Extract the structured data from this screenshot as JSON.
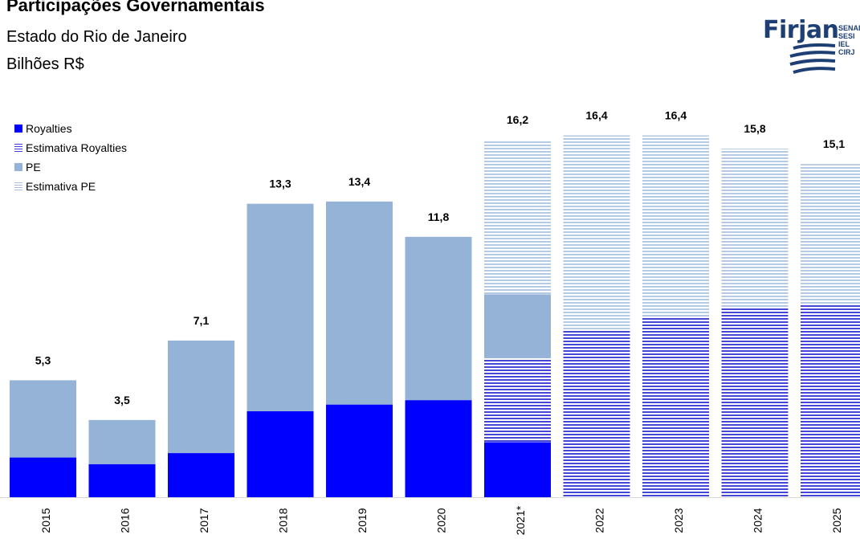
{
  "header": {
    "title": "Participações Governamentais",
    "subtitle": "Estado do Rio de Janeiro",
    "unit": "Bilhões R$"
  },
  "logo": {
    "name": "Firjan",
    "lines": [
      "SENAI",
      "SESI",
      "IEL",
      "CIRJ"
    ]
  },
  "legend": {
    "placement": "top-left",
    "items": [
      {
        "label": "Royalties",
        "color": "#0000ff",
        "pattern": "solid"
      },
      {
        "label": "Estimativa Royalties",
        "color": "#4b4bd8",
        "pattern": "striped"
      },
      {
        "label": "PE",
        "color": "#94b3d7",
        "pattern": "solid"
      },
      {
        "label": "Estimativa PE",
        "color": "#c5d5e8",
        "pattern": "striped"
      }
    ]
  },
  "chart_data": {
    "type": "bar",
    "stacked": true,
    "categories": [
      "2015",
      "2016",
      "2017",
      "2018",
      "2019",
      "2020",
      "2021*",
      "2022",
      "2023",
      "2024",
      "2025"
    ],
    "series": [
      {
        "name": "Royalties",
        "values": [
          1.8,
          1.5,
          2.0,
          3.9,
          4.2,
          4.4,
          2.5,
          0,
          0,
          0,
          0
        ]
      },
      {
        "name": "Estimativa Royalties",
        "values": [
          0,
          0,
          0,
          0,
          0,
          0,
          3.8,
          7.6,
          8.2,
          8.6,
          8.7
        ]
      },
      {
        "name": "PE",
        "values": [
          3.5,
          2.0,
          5.1,
          9.4,
          9.2,
          7.4,
          2.9,
          0,
          0,
          0,
          0
        ]
      },
      {
        "name": "Estimativa PE",
        "values": [
          0,
          0,
          0,
          0,
          0,
          0,
          7.0,
          8.8,
          8.2,
          7.2,
          6.4
        ]
      }
    ],
    "totals": [
      5.3,
      3.5,
      7.1,
      13.3,
      13.4,
      11.8,
      16.2,
      16.4,
      16.4,
      15.8,
      15.1
    ],
    "total_labels": [
      "5,3",
      "3,5",
      "7,1",
      "13,3",
      "13,4",
      "11,8",
      "16,2",
      "16,4",
      "16,4",
      "15,8",
      "15,1"
    ],
    "ylim": [
      0,
      16.6
    ],
    "grid": false
  }
}
